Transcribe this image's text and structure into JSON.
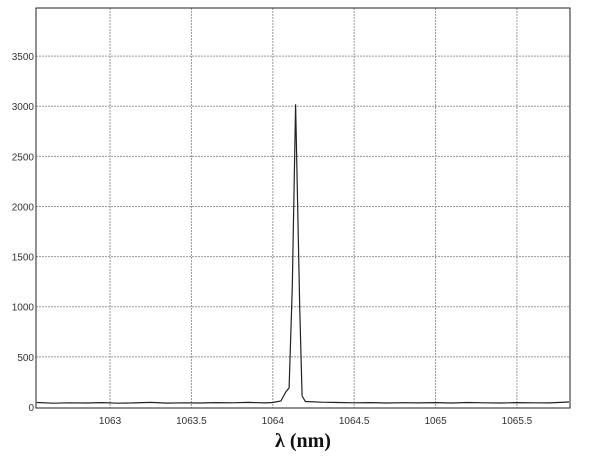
{
  "chart_data": {
    "type": "line",
    "title": "",
    "xlabel": "λ (nm)",
    "ylabel": "",
    "xlim": [
      1062.545,
      1065.826
    ],
    "ylim": [
      -10,
      3980
    ],
    "grid": true,
    "xticks": [
      1063,
      1063.5,
      1064,
      1064.5,
      1065,
      1065.5
    ],
    "xtick_labels": [
      "1063",
      "1063.5",
      "1064",
      "1064.5",
      "1065",
      "1065.5"
    ],
    "yticks": [
      0,
      500,
      1000,
      1500,
      2000,
      2500,
      3000,
      3500
    ],
    "ytick_labels": [
      "0",
      "500",
      "1000",
      "1500",
      "2000",
      "2500",
      "3000",
      "3500"
    ],
    "line_color": "#222222",
    "series": [
      {
        "x": [
          1062.55,
          1062.65,
          1062.75,
          1062.85,
          1062.95,
          1063.05,
          1063.15,
          1063.25,
          1063.35,
          1063.45,
          1063.55,
          1063.65,
          1063.75,
          1063.85,
          1063.95,
          1064.0,
          1064.05,
          1064.08,
          1064.1,
          1064.12,
          1064.14,
          1064.165,
          1064.18,
          1064.2,
          1064.3,
          1064.4,
          1064.5,
          1064.6,
          1064.7,
          1064.8,
          1064.9,
          1065.0,
          1065.1,
          1065.2,
          1065.3,
          1065.4,
          1065.5,
          1065.6,
          1065.7,
          1065.82
        ],
        "y": [
          45,
          38,
          42,
          40,
          44,
          38,
          41,
          46,
          39,
          42,
          40,
          44,
          42,
          46,
          41,
          45,
          60,
          150,
          190,
          1200,
          3020,
          1000,
          110,
          55,
          48,
          45,
          42,
          44,
          40,
          43,
          41,
          44,
          40,
          45,
          42,
          40,
          44,
          42,
          41,
          50
        ]
      }
    ]
  }
}
